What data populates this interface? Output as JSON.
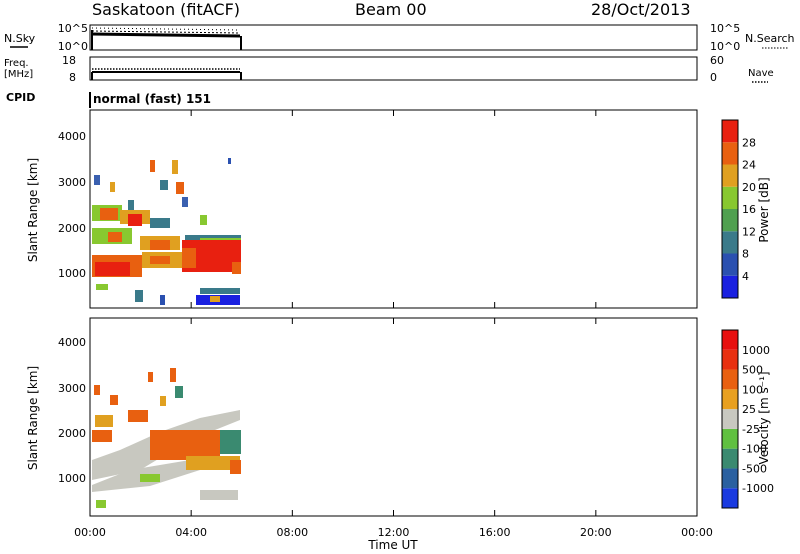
{
  "header": {
    "left_title": "Saskatoon (fitACF)",
    "center_title": "Beam 00",
    "right_title": "28/Oct/2013"
  },
  "top_panels": {
    "nsky_label": "N.Sky",
    "nsky_ticks": [
      "10^5",
      "10^0"
    ],
    "nsearch_label": "N.Search",
    "nsearch_ticks": [
      "10^5",
      "10^0"
    ],
    "freq_label_line1": "Freq.",
    "freq_label_line2": "[MHz]",
    "freq_ticks": [
      "18",
      "8"
    ],
    "nave_label": "Nave",
    "nave_ticks": [
      "60",
      "0"
    ],
    "cpid_label": "CPID",
    "cpid_text": "normal (fast) 151"
  },
  "chart_data": [
    {
      "type": "heatmap",
      "name": "power",
      "ylabel": "Slant Range [km]",
      "yticks": [
        "1000",
        "2000",
        "3000",
        "4000"
      ],
      "ylim": [
        180,
        4590
      ],
      "xlim_hours": [
        0,
        24
      ],
      "data_extent_hours": [
        0,
        6
      ],
      "colorbar_label": "Power [dB]",
      "colorbar_ticks": [
        "4",
        "8",
        "12",
        "16",
        "20",
        "24",
        "28"
      ],
      "colorbar_colors": [
        "#1a20e0",
        "#2a50b0",
        "#3a7a8a",
        "#50a050",
        "#88c830",
        "#e0a020",
        "#e86010",
        "#e82010"
      ]
    },
    {
      "type": "heatmap",
      "name": "velocity",
      "ylabel": "Slant Range [km]",
      "yticks": [
        "1000",
        "2000",
        "3000",
        "4000"
      ],
      "ylim": [
        180,
        4590
      ],
      "xlim_hours": [
        0,
        24
      ],
      "data_extent_hours": [
        0,
        6
      ],
      "colorbar_label": "Velocity [m s⁻¹]",
      "colorbar_ticks": [
        "1000",
        "500",
        "100",
        "25",
        "-25",
        "-100",
        "-500",
        "-1000"
      ],
      "colorbar_colors": [
        "#1a3ae0",
        "#2a60a0",
        "#3a8a70",
        "#60c040",
        "#c8c8c0",
        "#e8a020",
        "#e86010",
        "#e83010",
        "#e81010"
      ],
      "xticks": [
        "00:00",
        "04:00",
        "08:00",
        "12:00",
        "16:00",
        "20:00",
        "00:00"
      ],
      "xlabel": "Time UT"
    }
  ]
}
